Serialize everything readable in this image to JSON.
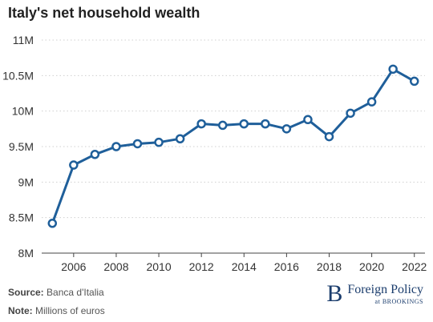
{
  "header": {
    "title": "Italy's net household wealth"
  },
  "footer": {
    "source_label": "Source:",
    "source_value": "Banca d'Italia",
    "note_label": "Note:",
    "note_value": "Millions of euros"
  },
  "brand": {
    "mark": "B",
    "name": "Foreign Policy",
    "sub": "at BROOKINGS"
  },
  "colors": {
    "line": "#1f5f9a",
    "grid": "#cfcfcf",
    "text": "#333333"
  },
  "chart_data": {
    "type": "line",
    "title": "Italy's net household wealth",
    "xlabel": "",
    "ylabel": "",
    "ylim": [
      8000000,
      11000000
    ],
    "xlim": [
      2004.5,
      2022.5
    ],
    "y_ticks": [
      8000000,
      8500000,
      9000000,
      9500000,
      10000000,
      10500000,
      11000000
    ],
    "y_tick_labels": [
      "8M",
      "8.5M",
      "9M",
      "9.5M",
      "10M",
      "10.5M",
      "11M"
    ],
    "x_ticks": [
      2006,
      2008,
      2010,
      2012,
      2014,
      2016,
      2018,
      2020,
      2022
    ],
    "x_tick_labels": [
      "2006",
      "2008",
      "2010",
      "2012",
      "2014",
      "2016",
      "2018",
      "2020",
      "2022"
    ],
    "grid": "horizontal dotted",
    "x": [
      2005,
      2006,
      2007,
      2008,
      2009,
      2010,
      2011,
      2012,
      2013,
      2014,
      2015,
      2016,
      2017,
      2018,
      2019,
      2020,
      2021,
      2022
    ],
    "values": [
      8420000,
      9240000,
      9390000,
      9500000,
      9540000,
      9560000,
      9610000,
      9820000,
      9800000,
      9820000,
      9820000,
      9750000,
      9880000,
      9640000,
      9970000,
      10130000,
      10590000,
      10420000
    ]
  }
}
